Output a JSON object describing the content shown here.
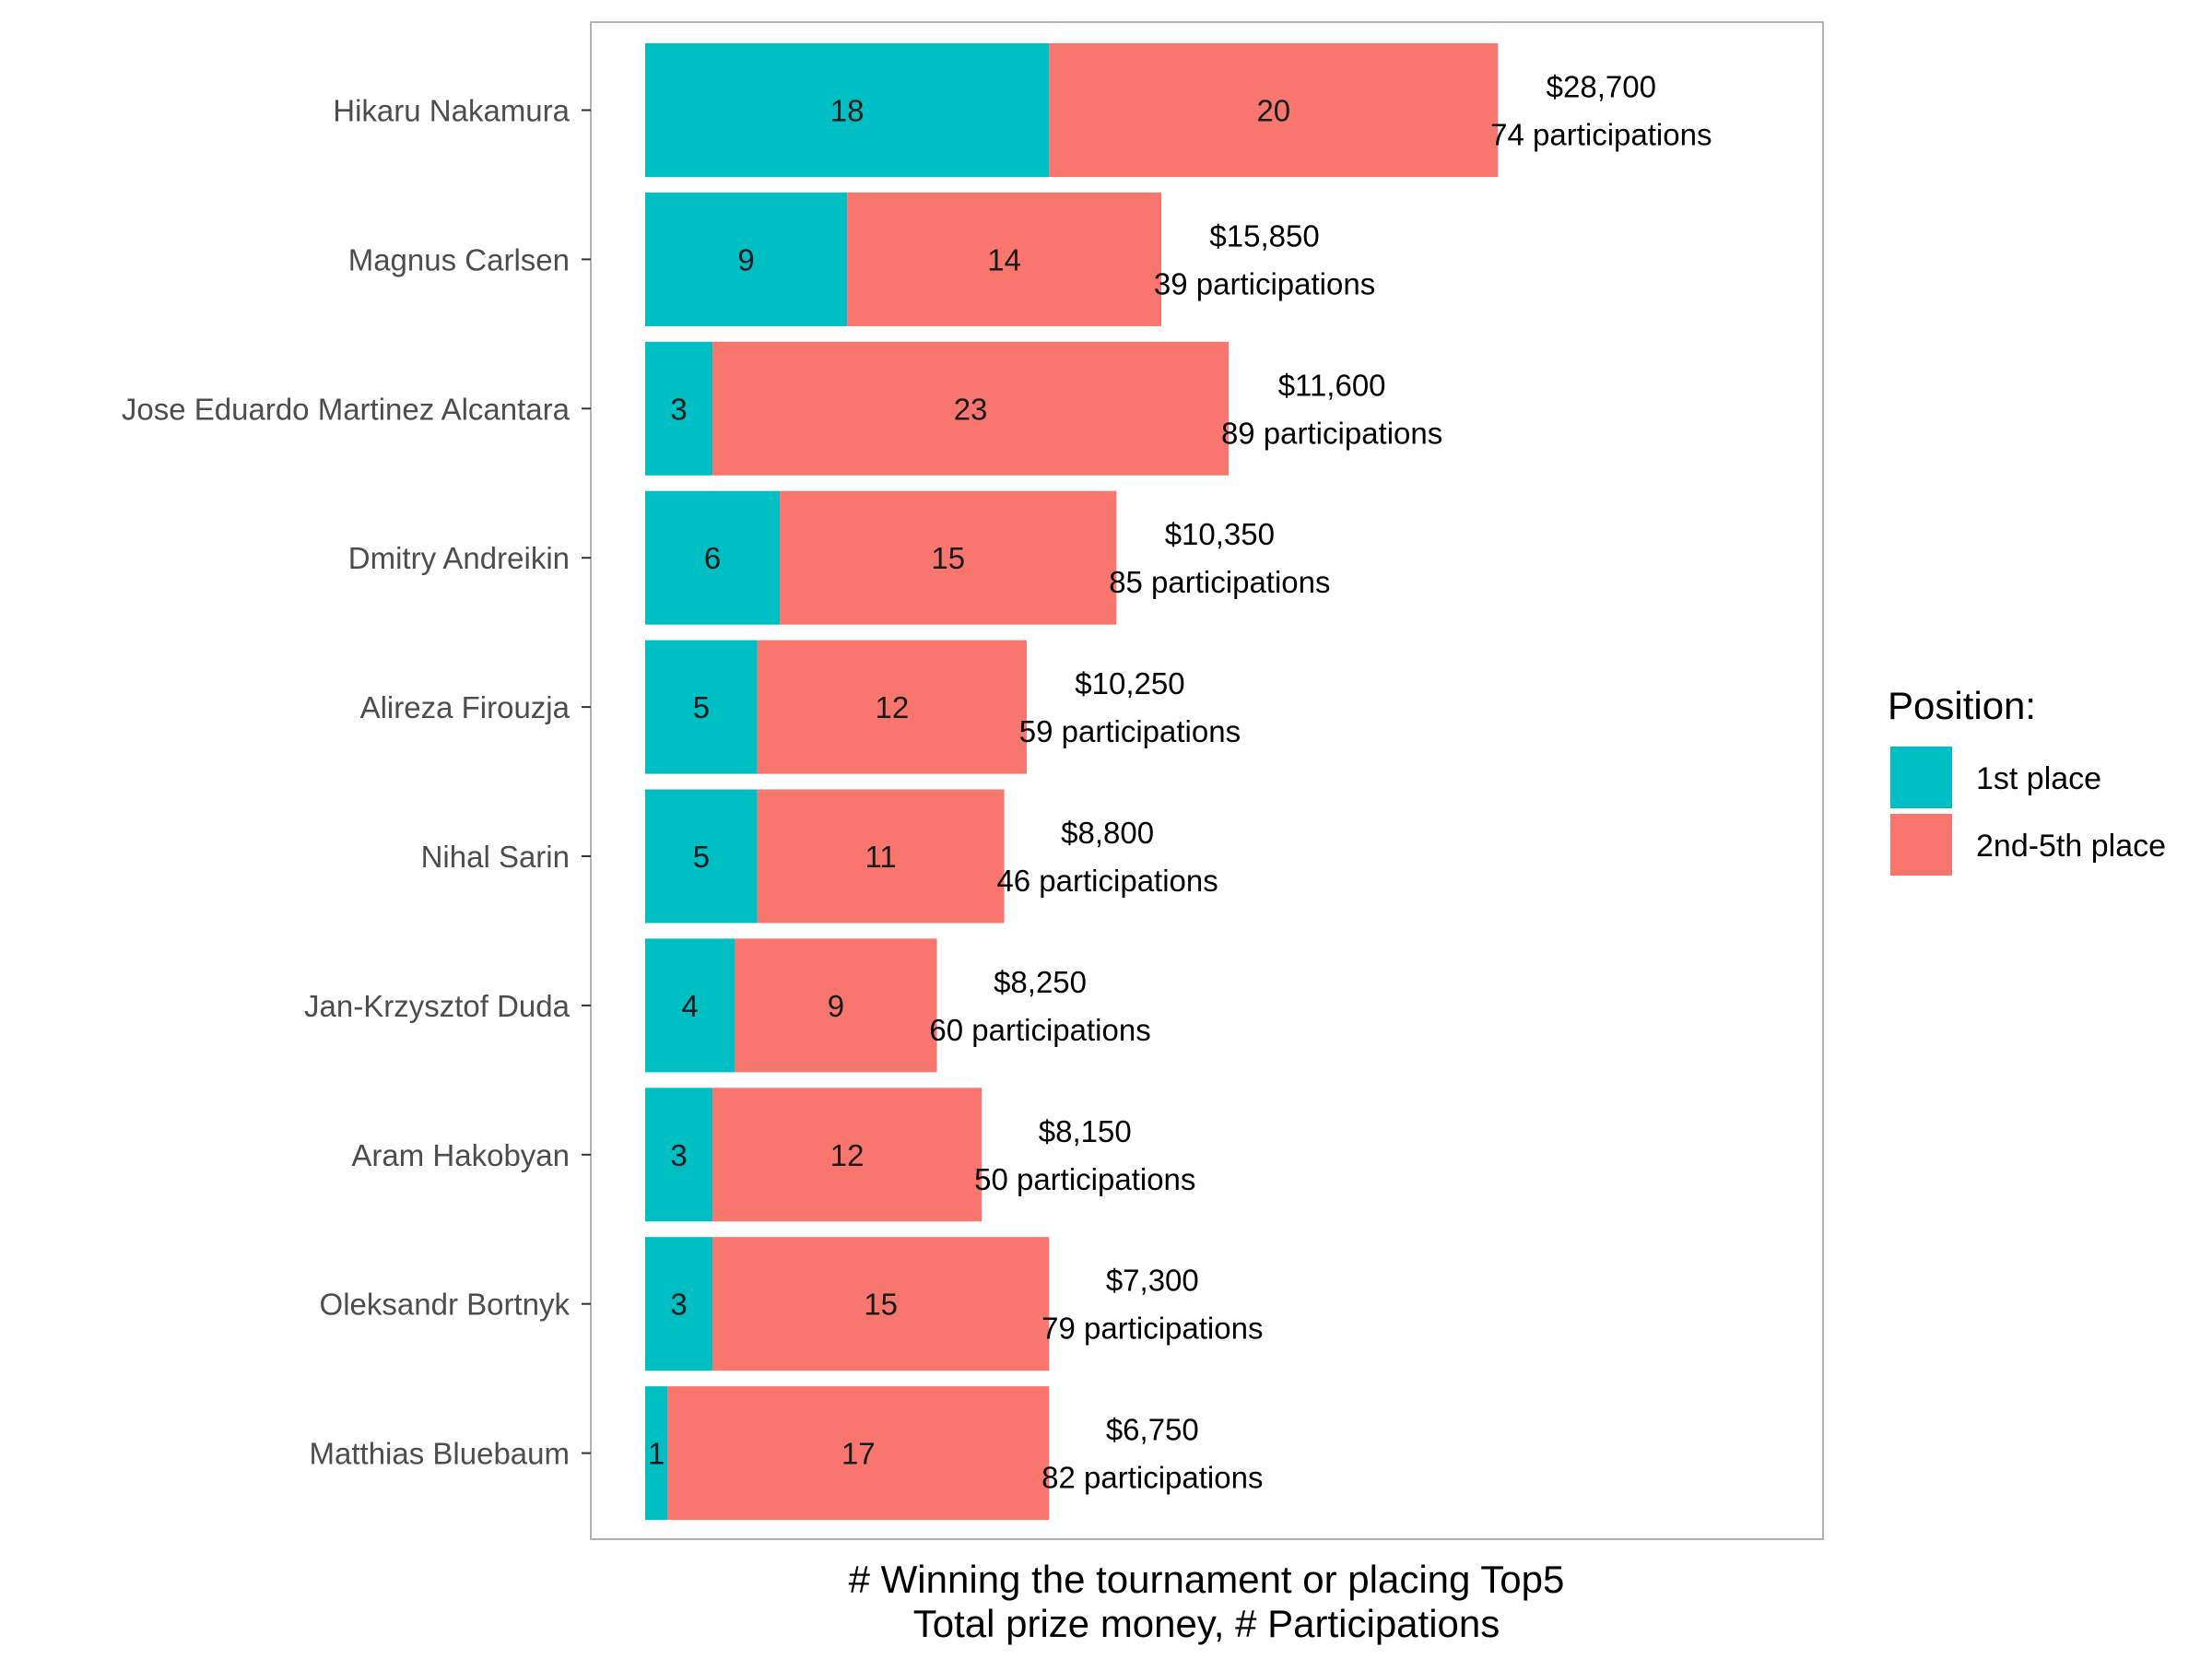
{
  "chart_data": {
    "type": "bar",
    "orientation": "horizontal",
    "stacked": true,
    "categories": [
      "Hikaru Nakamura",
      "Magnus Carlsen",
      "Jose Eduardo Martinez Alcantara",
      "Dmitry Andreikin",
      "Alireza Firouzja",
      "Nihal Sarin",
      "Jan-Krzysztof Duda",
      "Aram Hakobyan",
      "Oleksandr Bortnyk",
      "Matthias Bluebaum"
    ],
    "series": [
      {
        "name": "1st place",
        "color": "#00BFC4",
        "values": [
          18,
          9,
          3,
          6,
          5,
          5,
          4,
          3,
          3,
          1
        ]
      },
      {
        "name": "2nd-5th place",
        "color": "#F8766D",
        "values": [
          20,
          14,
          23,
          15,
          12,
          11,
          9,
          12,
          15,
          17
        ]
      }
    ],
    "annotations": [
      {
        "prize": "$28,700",
        "participations": "74 participations"
      },
      {
        "prize": "$15,850",
        "participations": "39 participations"
      },
      {
        "prize": "$11,600",
        "participations": "89 participations"
      },
      {
        "prize": "$10,350",
        "participations": "85 participations"
      },
      {
        "prize": "$10,250",
        "participations": "59 participations"
      },
      {
        "prize": "$8,800",
        "participations": "46 participations"
      },
      {
        "prize": "$8,250",
        "participations": "60 participations"
      },
      {
        "prize": "$8,150",
        "participations": "50 participations"
      },
      {
        "prize": "$7,300",
        "participations": "79 participations"
      },
      {
        "prize": "$6,750",
        "participations": "82 participations"
      }
    ],
    "xlabel_line1": "# Winning the tournament or placing Top5",
    "xlabel_line2": "Total prize money, # Participations",
    "legend": {
      "title": "Position:",
      "position": "right"
    },
    "xlim": [
      0,
      52
    ],
    "grid": false
  }
}
